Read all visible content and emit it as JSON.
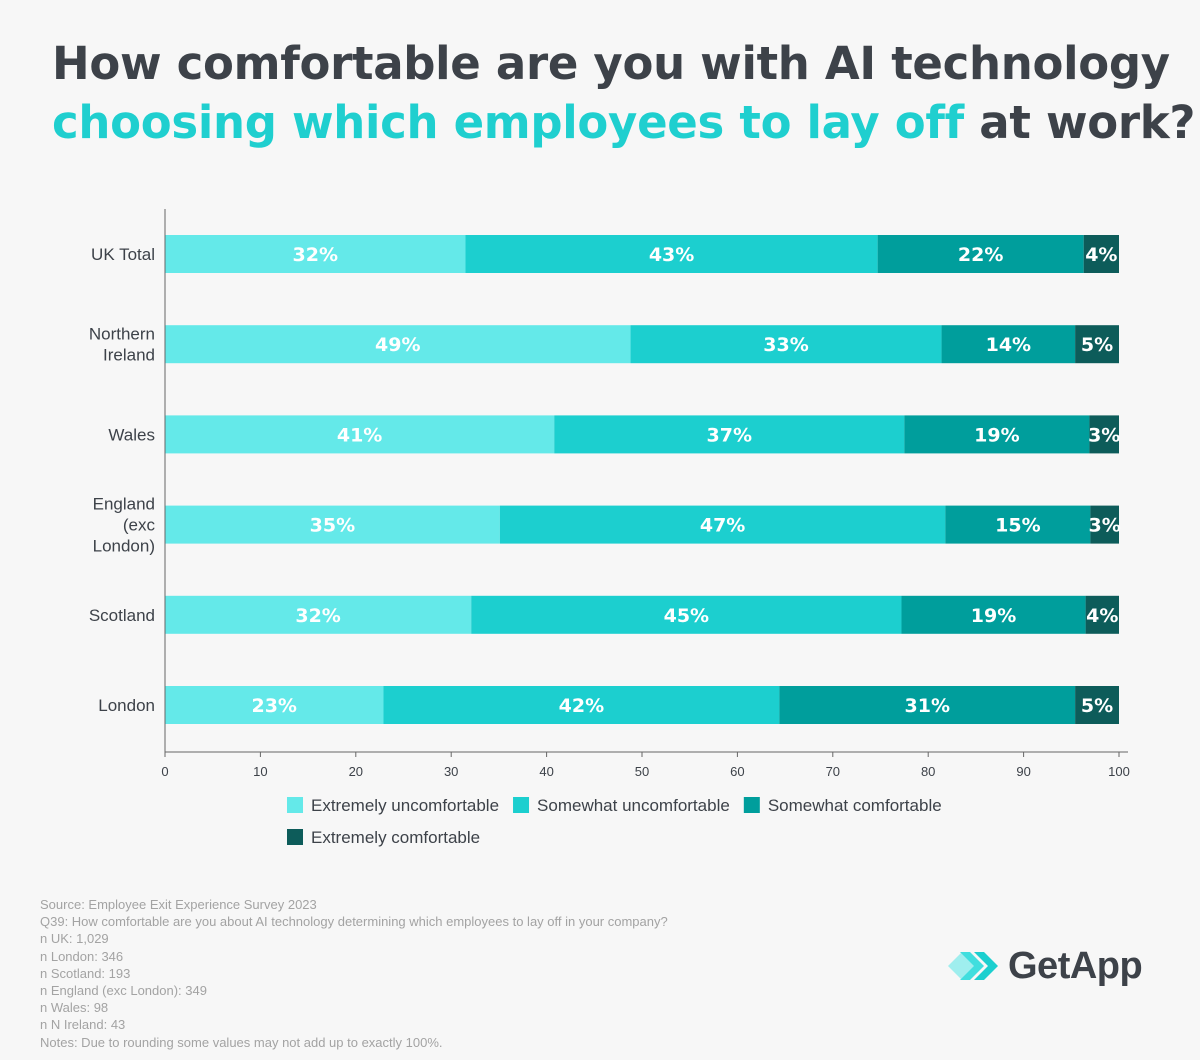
{
  "header": {
    "title_line1": "How comfortable are you with AI technology",
    "title_line2_accent": "choosing which employees to lay off",
    "title_line2_rest": " at work?"
  },
  "colors": {
    "extremely_uncomfortable": "#64e9e9",
    "somewhat_uncomfortable": "#1ccfcf",
    "somewhat_comfortable": "#009e9c",
    "extremely_comfortable": "#0d5c5a",
    "title_accent": "#1fcfcf",
    "title_text": "#3d4249"
  },
  "chart_data": {
    "type": "bar",
    "orientation": "horizontal",
    "stacked": true,
    "categories": [
      [
        "UK Total"
      ],
      [
        "Northern",
        "Ireland"
      ],
      [
        "Wales"
      ],
      [
        "England",
        "(exc",
        "London)"
      ],
      [
        "Scotland"
      ],
      [
        "London"
      ]
    ],
    "series": [
      {
        "name": "Extremely uncomfortable",
        "color_key": "extremely_uncomfortable",
        "values": [
          31.5,
          48.8,
          40.8,
          35.1,
          32.1,
          22.9
        ],
        "labels": [
          "32%",
          "49%",
          "41%",
          "35%",
          "32%",
          "23%"
        ]
      },
      {
        "name": "Somewhat uncomfortable",
        "color_key": "somewhat_uncomfortable",
        "values": [
          43.2,
          32.6,
          36.7,
          46.7,
          45.1,
          41.5
        ],
        "labels": [
          "43%",
          "33%",
          "37%",
          "47%",
          "45%",
          "42%"
        ]
      },
      {
        "name": "Somewhat comfortable",
        "color_key": "somewhat_comfortable",
        "values": [
          21.6,
          14.0,
          19.4,
          15.2,
          19.3,
          31.0
        ],
        "labels": [
          "22%",
          "14%",
          "19%",
          "15%",
          "19%",
          "31%"
        ]
      },
      {
        "name": "Extremely comfortable",
        "color_key": "extremely_comfortable",
        "values": [
          3.7,
          4.6,
          3.1,
          3.0,
          3.5,
          4.6
        ],
        "labels": [
          "4%",
          "5%",
          "3%",
          "3%",
          "4%",
          "5%"
        ]
      }
    ],
    "xlim": [
      0,
      100
    ],
    "xticks": [
      0,
      10,
      20,
      30,
      40,
      50,
      60,
      70,
      80,
      90,
      100
    ],
    "xlabel": "",
    "ylabel": "",
    "grid": false,
    "legend_position": "bottom",
    "legend_rows": [
      [
        "Extremely uncomfortable",
        "Somewhat uncomfortable",
        "Somewhat comfortable"
      ],
      [
        "Extremely comfortable"
      ]
    ]
  },
  "source_notes": [
    "Source: Employee Exit Experience Survey 2023",
    "Q39: How comfortable are you about AI technology determining which employees to lay off in your company?",
    "n UK: 1,029",
    "n London: 346",
    "n Scotland: 193",
    "n England (exc London): 349",
    "n Wales: 98",
    "n N Ireland: 43",
    "Notes: Due to rounding some values may not add up to exactly 100%."
  ],
  "brand": {
    "name": "GetApp",
    "icon": "getapp-chevrons-icon"
  }
}
